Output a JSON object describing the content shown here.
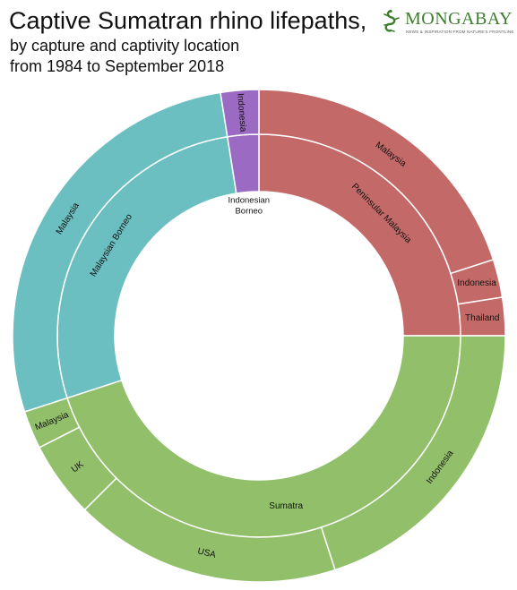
{
  "header": {
    "title": "Captive Sumatran rhino lifepaths,",
    "subtitle_lines": [
      "by capture and captivity location",
      "from 1984 to September 2018"
    ]
  },
  "logo": {
    "name": "MONGABAY",
    "tagline": "NEWS & INSPIRATION FROM NATURE'S FRONTLINE",
    "color": "#3d7d2e",
    "icon": "lizard-icon"
  },
  "chart_data": {
    "type": "sunburst",
    "title": "Captive Sumatran rhino lifepaths,",
    "subtitle": "by capture and captivity location from 1984 to September 2018",
    "inner_ring_level": "capture location",
    "outer_ring_level": "captivity location",
    "unit": "rhinos (estimated from arc sizes)",
    "children": [
      {
        "name": "Peninsular Malaysia",
        "color": "#c36a68",
        "children": [
          {
            "name": "Malaysia",
            "value": 8
          },
          {
            "name": "Indonesia",
            "value": 1
          },
          {
            "name": "Thailand",
            "value": 1
          }
        ]
      },
      {
        "name": "Sumatra",
        "color": "#92c06a",
        "children": [
          {
            "name": "Indonesia",
            "value": 8
          },
          {
            "name": "USA",
            "value": 7
          },
          {
            "name": "UK",
            "value": 2
          },
          {
            "name": "Malaysia",
            "value": 1
          }
        ]
      },
      {
        "name": "Malaysian Borneo",
        "color": "#6bbfc0",
        "children": [
          {
            "name": "Malaysia",
            "value": 11
          }
        ]
      },
      {
        "name": "Indonesian Borneo",
        "center_lines": [
          "Indonesian",
          "Borneo"
        ],
        "color": "#9b6bc3",
        "children": [
          {
            "name": "Indonesia",
            "value": 1
          }
        ]
      }
    ]
  }
}
